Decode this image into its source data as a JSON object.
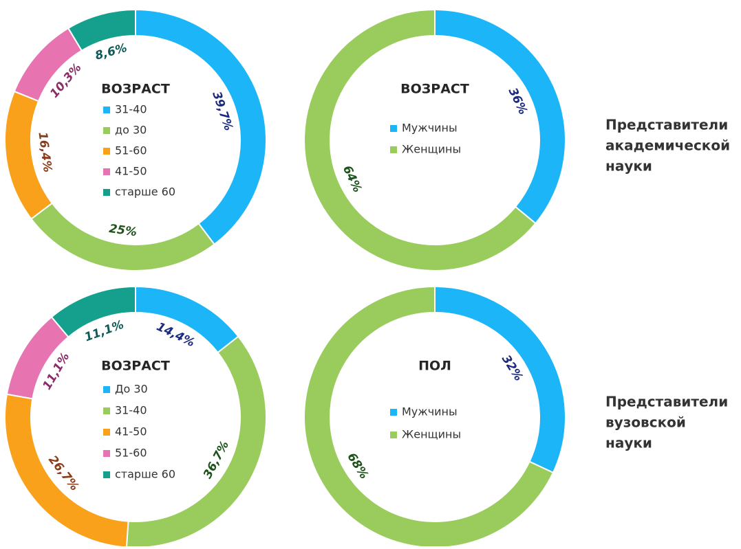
{
  "chart_data": [
    {
      "type": "pie",
      "title": "ВОЗРАСТ",
      "categories": [
        "31-40",
        "до 30",
        "51-60",
        "41-50",
        "старше 60"
      ],
      "values": [
        39.7,
        25,
        16.4,
        10.3,
        8.6
      ],
      "value_labels": [
        "39,7%",
        "25%",
        "16,4%",
        "10,3%",
        "8,6%"
      ],
      "colors": [
        "#1cb6f8",
        "#99cc5c",
        "#f9a11b",
        "#e774b1",
        "#15a08e"
      ],
      "label_colors": [
        "#1b2a80",
        "#1d521a",
        "#8a3b17",
        "#8b2a66",
        "#0f5a56"
      ]
    },
    {
      "type": "pie",
      "title": "ВОЗРАСТ",
      "categories": [
        "Мужчины",
        "Женщины"
      ],
      "values": [
        36,
        64
      ],
      "value_labels": [
        "36%",
        "64%"
      ],
      "colors": [
        "#1cb6f8",
        "#99cc5c"
      ],
      "label_colors": [
        "#1b2a80",
        "#1d521a"
      ]
    },
    {
      "type": "pie",
      "title": "ВОЗРАСТ",
      "categories": [
        "До 30",
        "31-40",
        "41-50",
        "51-60",
        "старше 60"
      ],
      "values": [
        14.4,
        36.7,
        26.7,
        11.1,
        11.1
      ],
      "value_labels": [
        "14,4%",
        "36,7%",
        "26,7%",
        "11,1%",
        "11,1%"
      ],
      "colors": [
        "#1cb6f8",
        "#99cc5c",
        "#f9a11b",
        "#e774b1",
        "#15a08e"
      ],
      "label_colors": [
        "#1b2a80",
        "#1d521a",
        "#8a3b17",
        "#8b2a66",
        "#0f5a56"
      ]
    },
    {
      "type": "pie",
      "title": "ПОЛ",
      "categories": [
        "Мужчины",
        "Женщины"
      ],
      "values": [
        32,
        68
      ],
      "value_labels": [
        "32%",
        "68%"
      ],
      "colors": [
        "#1cb6f8",
        "#99cc5c"
      ],
      "label_colors": [
        "#1b2a80",
        "#1d521a"
      ]
    }
  ],
  "row_labels": [
    [
      "Представители",
      "академической",
      "науки"
    ],
    [
      "Представители",
      "вузовской",
      "науки"
    ]
  ]
}
